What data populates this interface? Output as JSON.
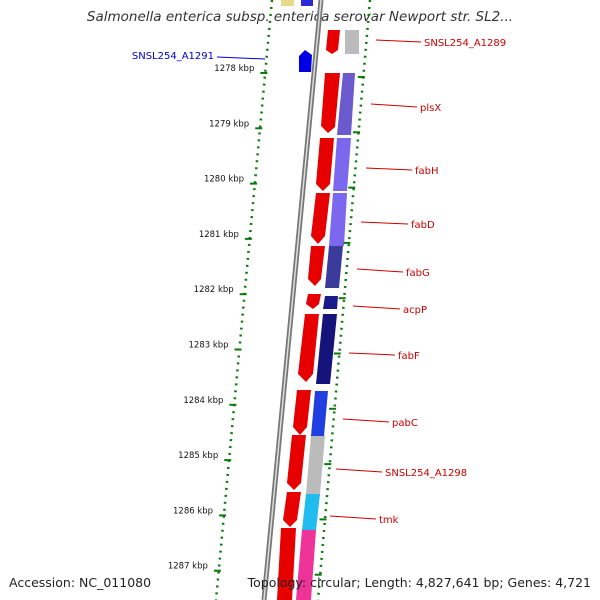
{
  "title": "Salmonella enterica subsp. enterica serovar Newport str. SL2...",
  "footer": {
    "accession": "Accession: NC_011080",
    "summary": "Topology: circular; Length: 4,827,641 bp; Genes: 4,721"
  },
  "colors": {
    "forward_gene": "#e60000",
    "reverse_gene": "#0000e6",
    "label_forward": "#cc0000",
    "label_reverse": "#0000cc",
    "backbone": "#888888",
    "tick_green": "#0a7a0a"
  },
  "scale": {
    "unit": "kbp",
    "labels": [
      "1278 kbp",
      "1279 kbp",
      "1280 kbp",
      "1281 kbp",
      "1282 kbp",
      "1283 kbp",
      "1284 kbp",
      "1285 kbp",
      "1286 kbp",
      "1287 kbp"
    ]
  },
  "genes": [
    {
      "name": "SNSL254_A1289",
      "strand": "forward"
    },
    {
      "name": "SNSL254_A1291",
      "strand": "reverse"
    },
    {
      "name": "plsX",
      "strand": "forward"
    },
    {
      "name": "fabH",
      "strand": "forward"
    },
    {
      "name": "fabD",
      "strand": "forward"
    },
    {
      "name": "fabG",
      "strand": "forward"
    },
    {
      "name": "acpP",
      "strand": "forward"
    },
    {
      "name": "fabF",
      "strand": "forward"
    },
    {
      "name": "pabC",
      "strand": "forward"
    },
    {
      "name": "SNSL254_A1298",
      "strand": "forward"
    },
    {
      "name": "tmk",
      "strand": "forward"
    }
  ]
}
